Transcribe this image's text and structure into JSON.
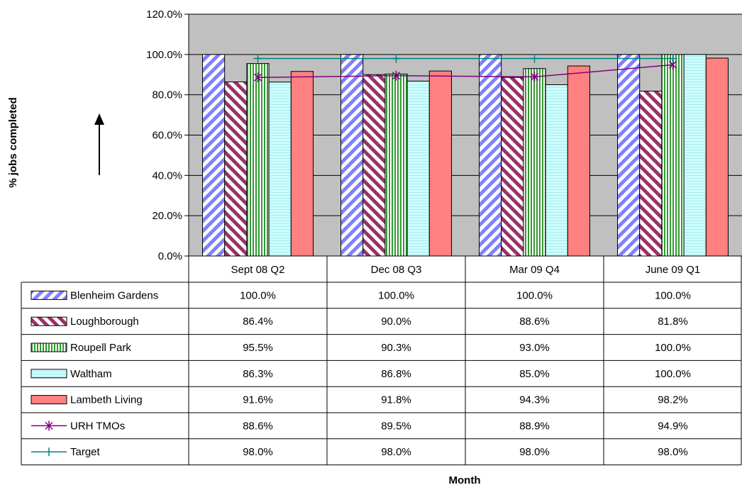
{
  "chart_data": {
    "type": "bar",
    "title": "",
    "xlabel": "Month",
    "ylabel": "% jobs completed",
    "ylim": [
      0,
      120
    ],
    "y_ticks": [
      0,
      20,
      40,
      60,
      80,
      100,
      120
    ],
    "y_tick_labels": [
      "0.0%",
      "20.0%",
      "40.0%",
      "60.0%",
      "80.0%",
      "100.0%",
      "120.0%"
    ],
    "grid": true,
    "legend": "data-table-left",
    "plot_background": "#c0c0c0",
    "categories": [
      "Sept 08 Q2",
      "Dec 08 Q3",
      "Mar 09 Q4",
      "June 09 Q1"
    ],
    "series": [
      {
        "name": "Blenheim Gardens",
        "kind": "bar",
        "pattern": "diagonal-blue",
        "color": "#8080ff",
        "values": [
          100.0,
          100.0,
          100.0,
          100.0
        ],
        "labels": [
          "100.0%",
          "100.0%",
          "100.0%",
          "100.0%"
        ]
      },
      {
        "name": "Loughborough",
        "kind": "bar",
        "pattern": "diagonal-maroon",
        "color": "#993366",
        "values": [
          86.4,
          90.0,
          88.6,
          81.8
        ],
        "labels": [
          "86.4%",
          "90.0%",
          "88.6%",
          "81.8%"
        ]
      },
      {
        "name": "Roupell Park",
        "kind": "bar",
        "pattern": "vertical-green",
        "color": "#339933",
        "values": [
          95.5,
          90.3,
          93.0,
          100.0
        ],
        "labels": [
          "95.5%",
          "90.3%",
          "93.0%",
          "100.0%"
        ]
      },
      {
        "name": "Waltham",
        "kind": "bar",
        "pattern": "horizontal-cyan",
        "color": "#ccffff",
        "values": [
          86.3,
          86.8,
          85.0,
          100.0
        ],
        "labels": [
          "86.3%",
          "86.8%",
          "85.0%",
          "100.0%"
        ]
      },
      {
        "name": "Lambeth Living",
        "kind": "bar",
        "pattern": "solid",
        "color": "#ff8080",
        "values": [
          91.6,
          91.8,
          94.3,
          98.2
        ],
        "labels": [
          "91.6%",
          "91.8%",
          "94.3%",
          "98.2%"
        ]
      },
      {
        "name": "URH TMOs",
        "kind": "line",
        "marker": "star",
        "color": "#800080",
        "values": [
          88.6,
          89.5,
          88.9,
          94.9
        ],
        "labels": [
          "88.6%",
          "89.5%",
          "88.9%",
          "94.9%"
        ]
      },
      {
        "name": "Target",
        "kind": "line",
        "marker": "plus",
        "color": "#008080",
        "values": [
          98.0,
          98.0,
          98.0,
          98.0
        ],
        "labels": [
          "98.0%",
          "98.0%",
          "98.0%",
          "98.0%"
        ]
      }
    ]
  }
}
